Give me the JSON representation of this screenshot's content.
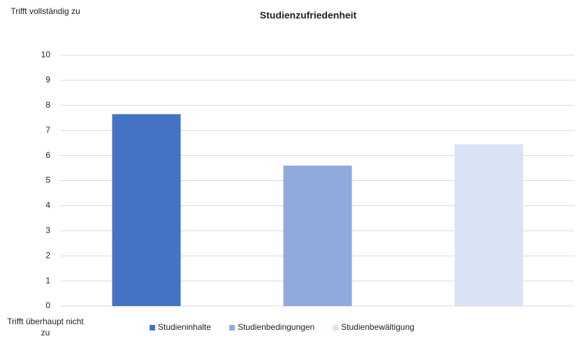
{
  "chart_data": {
    "type": "bar",
    "title": "Studienzufriedenheit",
    "y_top_label": "Trifft vollständig zu",
    "y_bottom_label": "Trifft überhaupt nicht zu",
    "series": [
      {
        "name": "Studieninhalte",
        "color": "#4472c4",
        "values": [
          7.65
        ]
      },
      {
        "name": "Studienbedingungen",
        "color": "#8faadc",
        "values": [
          5.6
        ]
      },
      {
        "name": "Studienbewältigung",
        "color": "#dae3f3",
        "values": [
          6.45
        ]
      }
    ],
    "ylim": [
      0,
      10
    ],
    "yticks": [
      0,
      1,
      2,
      3,
      4,
      5,
      6,
      7,
      8,
      9,
      10
    ],
    "grid": true,
    "legend": "bottom"
  }
}
